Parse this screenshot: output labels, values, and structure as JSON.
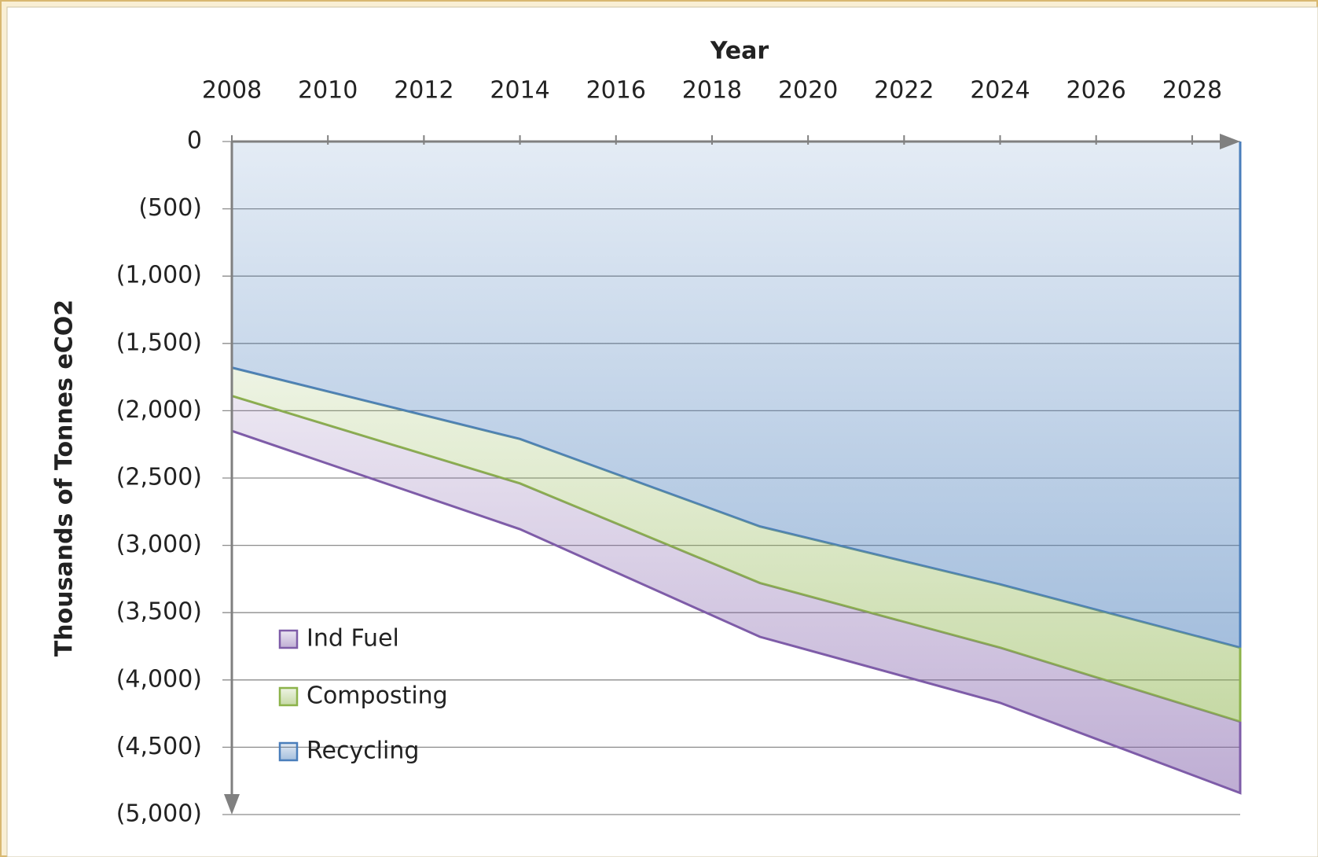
{
  "chart_data": {
    "type": "stacked_area",
    "x_label": "Year",
    "y_label": "Thousands of Tonnes eCO2",
    "x": [
      2008,
      2014,
      2019,
      2024,
      2029
    ],
    "series": [
      {
        "name": "Recycling",
        "color": "#4a7ebb",
        "values": [
          -1680,
          -2210,
          -2860,
          -3290,
          -3760
        ]
      },
      {
        "name": "Composting",
        "color": "#8cb34a",
        "values": [
          -210,
          -330,
          -420,
          -470,
          -550
        ]
      },
      {
        "name": "Ind Fuel",
        "color": "#7e5ca8",
        "values": [
          -260,
          -340,
          -400,
          -410,
          -530
        ]
      }
    ],
    "xlim": [
      2008,
      2029
    ],
    "xticks": [
      2008,
      2010,
      2012,
      2014,
      2016,
      2018,
      2020,
      2022,
      2024,
      2026,
      2028
    ],
    "ylim": [
      -5000,
      0
    ],
    "yticks": [
      0,
      {
        "value": -500,
        "label": "(500)"
      },
      {
        "value": -1000,
        "label": "(1,000)"
      },
      {
        "value": -1500,
        "label": "(1,500)"
      },
      {
        "value": -2000,
        "label": "(2,000)"
      },
      {
        "value": -2500,
        "label": "(2,500)"
      },
      {
        "value": -3000,
        "label": "(3,000)"
      },
      {
        "value": -3500,
        "label": "(3,500)"
      },
      {
        "value": -4000,
        "label": "(4,000)"
      },
      {
        "value": -4500,
        "label": "(4,500)"
      },
      {
        "value": -5000,
        "label": "(5,000)"
      }
    ],
    "grid": true,
    "legend": "lower left"
  }
}
